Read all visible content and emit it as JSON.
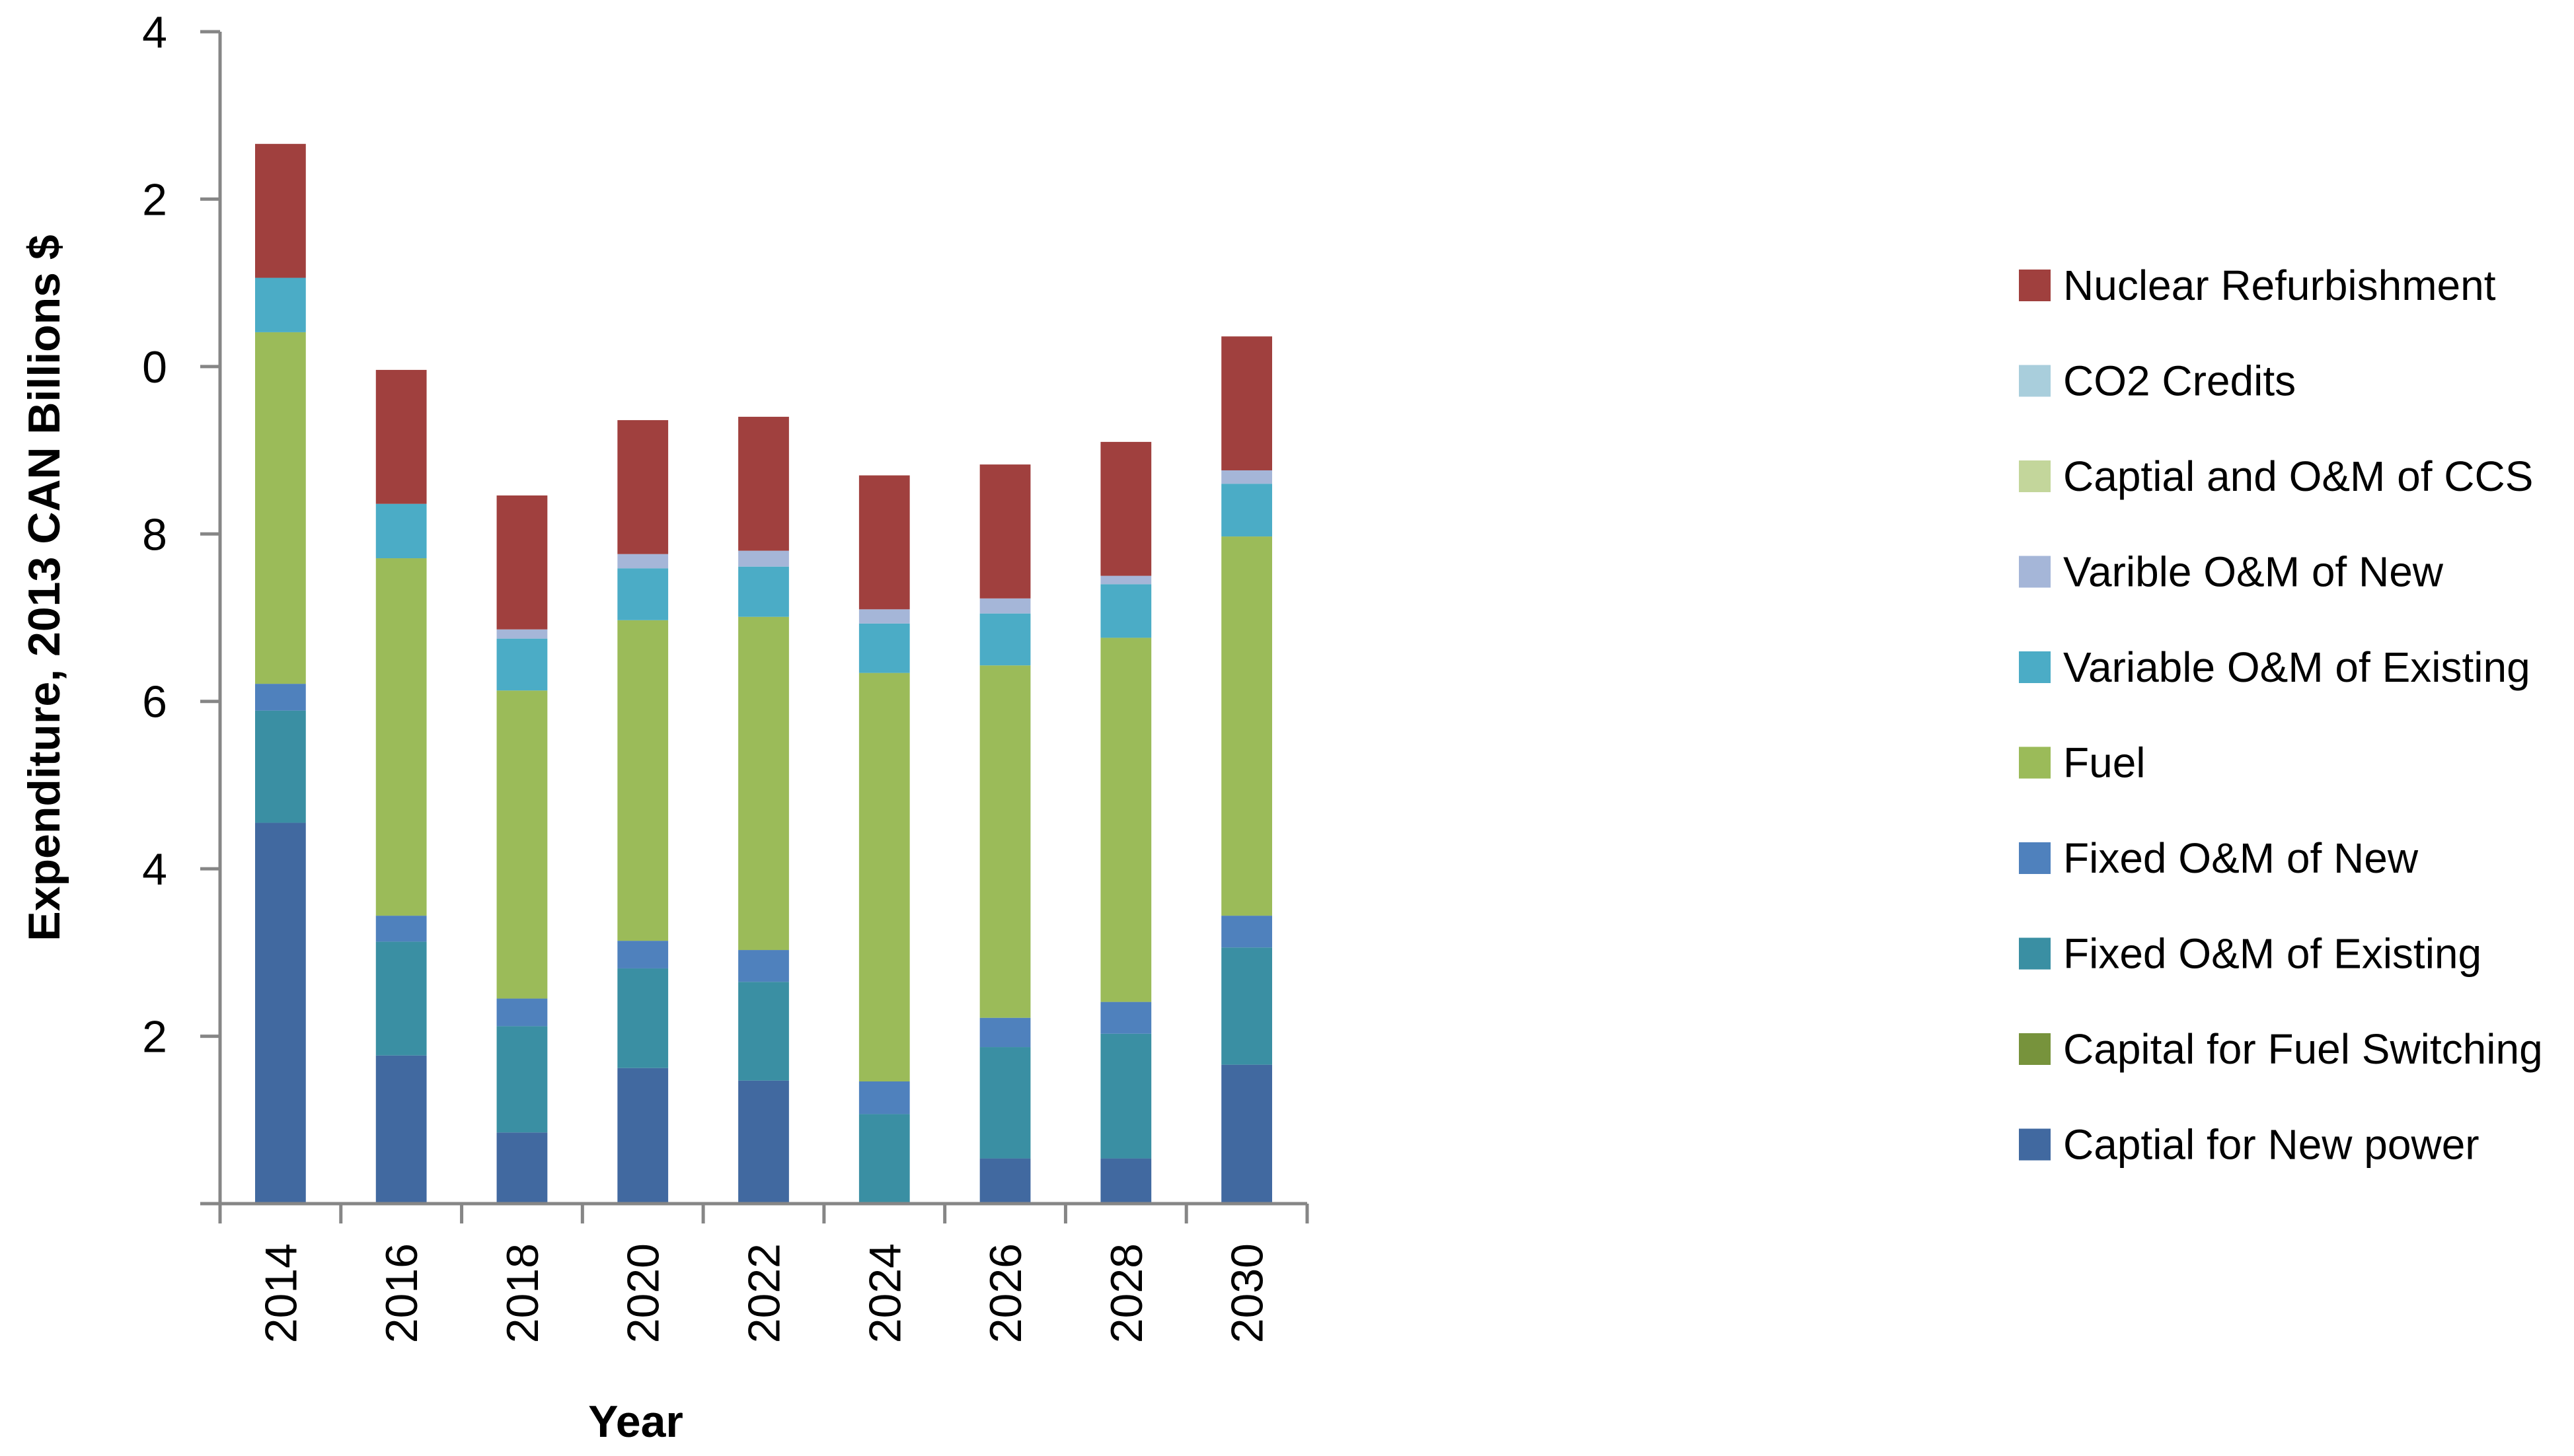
{
  "chart_data": {
    "type": "bar",
    "stacked": true,
    "title": "",
    "xlabel": "Year",
    "ylabel": "Expenditure, 2013 CAN Billions $",
    "categories": [
      "2014",
      "2016",
      "2018",
      "2020",
      "2022",
      "2024",
      "2026",
      "2028",
      "2030"
    ],
    "y_tick_labels": [
      "",
      "2",
      "4",
      "6",
      "8",
      "0",
      "2",
      "4"
    ],
    "ylim": [
      0,
      14
    ],
    "legend_position": "right",
    "series": [
      {
        "name": "Captial for New power",
        "color": "#4169A0",
        "values": [
          4.55,
          1.77,
          0.85,
          1.62,
          1.47,
          0.0,
          0.54,
          0.54,
          1.66
        ]
      },
      {
        "name": "Capital for Fuel Switching",
        "color": "#77933C",
        "values": [
          0,
          0,
          0,
          0,
          0,
          0,
          0,
          0,
          0
        ]
      },
      {
        "name": "Fixed O&M of Existing",
        "color": "#3A8FA3",
        "values": [
          1.34,
          1.36,
          1.27,
          1.19,
          1.18,
          1.07,
          1.33,
          1.49,
          1.4
        ]
      },
      {
        "name": "Fixed O&M of New",
        "color": "#4F81BD",
        "values": [
          0.32,
          0.31,
          0.33,
          0.33,
          0.38,
          0.39,
          0.35,
          0.38,
          0.38
        ]
      },
      {
        "name": "Fuel",
        "color": "#9BBB59",
        "values": [
          4.2,
          4.27,
          3.68,
          3.83,
          3.98,
          4.88,
          4.21,
          4.35,
          4.53
        ]
      },
      {
        "name": "Variable O&M of Existing",
        "color": "#4BACC6",
        "values": [
          0.65,
          0.65,
          0.62,
          0.62,
          0.6,
          0.59,
          0.62,
          0.64,
          0.63
        ]
      },
      {
        "name": "Varible O&M of New",
        "color": "#A5B6D8",
        "values": [
          0.0,
          0.0,
          0.11,
          0.17,
          0.19,
          0.17,
          0.18,
          0.1,
          0.16
        ]
      },
      {
        "name": "Captial and O&M of CCS",
        "color": "#C3D69B",
        "values": [
          0,
          0,
          0,
          0,
          0,
          0,
          0,
          0,
          0
        ]
      },
      {
        "name": "CO2 Credits",
        "color": "#A9CEDC",
        "values": [
          0,
          0,
          0,
          0,
          0,
          0,
          0,
          0,
          0
        ]
      },
      {
        "name": "Nuclear Refurbishment",
        "color": "#A0403E",
        "values": [
          1.6,
          1.6,
          1.6,
          1.6,
          1.6,
          1.6,
          1.6,
          1.6,
          1.6
        ]
      }
    ]
  }
}
